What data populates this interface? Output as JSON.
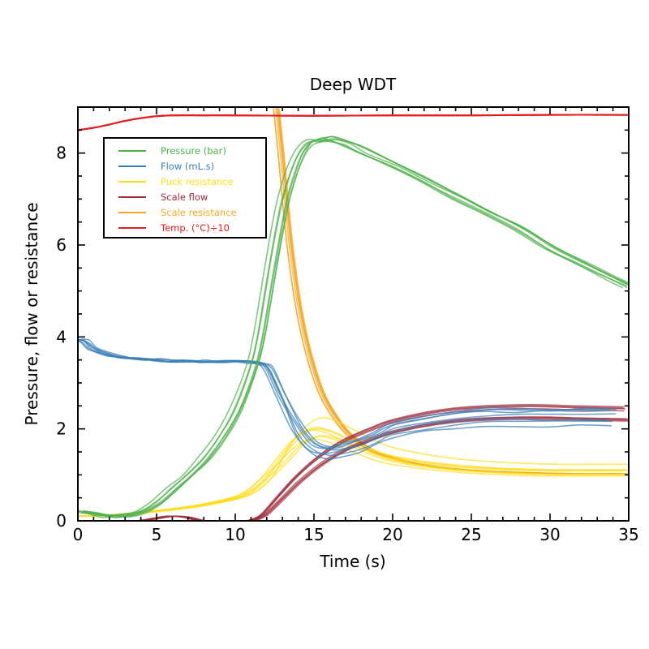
{
  "chart_data": {
    "type": "line",
    "title": "Deep WDT",
    "xlabel": "Time (s)",
    "ylabel": "Pressure, flow or resistance",
    "xlim": [
      0,
      35
    ],
    "ylim": [
      0,
      9
    ],
    "xticks": [
      0,
      5,
      10,
      15,
      20,
      25,
      30,
      35
    ],
    "xtick_labels": [
      "0",
      "5",
      "10",
      "15",
      "20",
      "25",
      "30",
      "35"
    ],
    "yticks": [
      0,
      2,
      4,
      6,
      8
    ],
    "ytick_labels": [
      "0",
      "2",
      "4",
      "6",
      "8"
    ],
    "x_minor_step": 1,
    "y_minor_step": 0.5,
    "grid": false,
    "legend_position": "upper-left",
    "legend": [
      {
        "label": "Pressure (bar)",
        "color": "#4daf4a"
      },
      {
        "label": "Flow (mL.s)",
        "color": "#377eb8"
      },
      {
        "label": "Puck resistance",
        "color": "#ffdd1a"
      },
      {
        "label": "Scale flow",
        "color": "#a02c3a"
      },
      {
        "label": "Scale resistance",
        "color": "#f5a623"
      },
      {
        "label": "Temp. (°C)÷10",
        "color": "#e41a1c"
      }
    ],
    "series": [
      {
        "name": "Pressure (bar)",
        "color": "#4daf4a",
        "runs": 7,
        "x": [
          0,
          1,
          2,
          3,
          4,
          5,
          6,
          7,
          8,
          9,
          10,
          11,
          11.5,
          12,
          12.5,
          13,
          13.5,
          14,
          14.5,
          15,
          15.5,
          16,
          17,
          18,
          20,
          22,
          24,
          26,
          28,
          30,
          32,
          34,
          35
        ],
        "y": [
          0.2,
          0.15,
          0.1,
          0.12,
          0.2,
          0.4,
          0.7,
          1.0,
          1.35,
          1.8,
          2.4,
          3.3,
          4.0,
          5.0,
          6.0,
          6.9,
          7.5,
          7.95,
          8.2,
          8.28,
          8.3,
          8.3,
          8.2,
          8.05,
          7.75,
          7.4,
          7.05,
          6.7,
          6.35,
          5.95,
          5.6,
          5.25,
          5.1
        ]
      },
      {
        "name": "Flow (mL.s)",
        "color": "#377eb8",
        "runs": 7,
        "x": [
          0,
          0.5,
          1,
          2,
          3,
          4,
          5,
          6,
          7,
          8,
          9,
          10,
          11,
          11.7,
          12.2,
          13,
          14,
          15,
          16,
          17,
          18,
          19,
          20,
          22,
          24,
          26,
          28,
          30,
          32,
          34
        ],
        "y": [
          3.95,
          3.9,
          3.75,
          3.62,
          3.56,
          3.52,
          3.5,
          3.48,
          3.48,
          3.47,
          3.47,
          3.47,
          3.45,
          3.42,
          3.3,
          2.7,
          2.0,
          1.6,
          1.5,
          1.55,
          1.65,
          1.8,
          1.95,
          2.1,
          2.2,
          2.25,
          2.25,
          2.25,
          2.25,
          2.25
        ]
      },
      {
        "name": "Puck resistance",
        "color": "#ffdd1a",
        "runs": 7,
        "x": [
          0,
          2,
          4,
          6,
          8,
          10,
          11,
          12,
          13,
          14,
          15,
          16,
          17,
          18,
          19,
          20,
          22,
          24,
          26,
          28,
          30,
          32,
          34,
          35
        ],
        "y": [
          0.1,
          0.12,
          0.18,
          0.25,
          0.35,
          0.5,
          0.65,
          0.95,
          1.4,
          1.8,
          2.0,
          1.95,
          1.8,
          1.65,
          1.5,
          1.4,
          1.28,
          1.2,
          1.15,
          1.12,
          1.1,
          1.1,
          1.1,
          1.1
        ]
      },
      {
        "name": "Scale flow",
        "color": "#a02c3a",
        "runs": 8,
        "x": [
          0,
          2,
          4,
          5,
          6,
          7,
          8,
          9,
          10,
          11,
          11.5,
          12,
          13,
          14,
          15,
          16,
          17,
          18,
          19,
          20,
          22,
          24,
          26,
          28,
          30,
          32,
          35
        ],
        "y": [
          0,
          0,
          0,
          0.05,
          0.1,
          0.08,
          0,
          0,
          0,
          0,
          0.05,
          0.15,
          0.5,
          0.85,
          1.15,
          1.4,
          1.6,
          1.75,
          1.88,
          2.0,
          2.15,
          2.25,
          2.3,
          2.32,
          2.32,
          2.3,
          2.28
        ]
      },
      {
        "name": "Scale resistance",
        "color": "#f5a623",
        "runs": 8,
        "x": [
          12.7,
          13,
          13.5,
          14,
          14.5,
          15,
          15.5,
          16,
          17,
          18,
          19,
          20,
          22,
          24,
          26,
          28,
          30,
          32,
          34,
          35
        ],
        "y": [
          9.0,
          8.0,
          6.2,
          4.9,
          4.0,
          3.35,
          2.85,
          2.5,
          2.0,
          1.7,
          1.5,
          1.38,
          1.22,
          1.13,
          1.08,
          1.05,
          1.03,
          1.02,
          1.02,
          1.02
        ]
      },
      {
        "name": "Temp. (°C)÷10",
        "color": "#e41a1c",
        "runs": 4,
        "x": [
          0,
          1,
          2,
          3,
          4,
          5,
          6,
          8,
          10,
          15,
          20,
          25,
          30,
          35
        ],
        "y": [
          8.5,
          8.55,
          8.62,
          8.7,
          8.76,
          8.8,
          8.82,
          8.82,
          8.82,
          8.81,
          8.82,
          8.82,
          8.83,
          8.83
        ]
      }
    ]
  }
}
